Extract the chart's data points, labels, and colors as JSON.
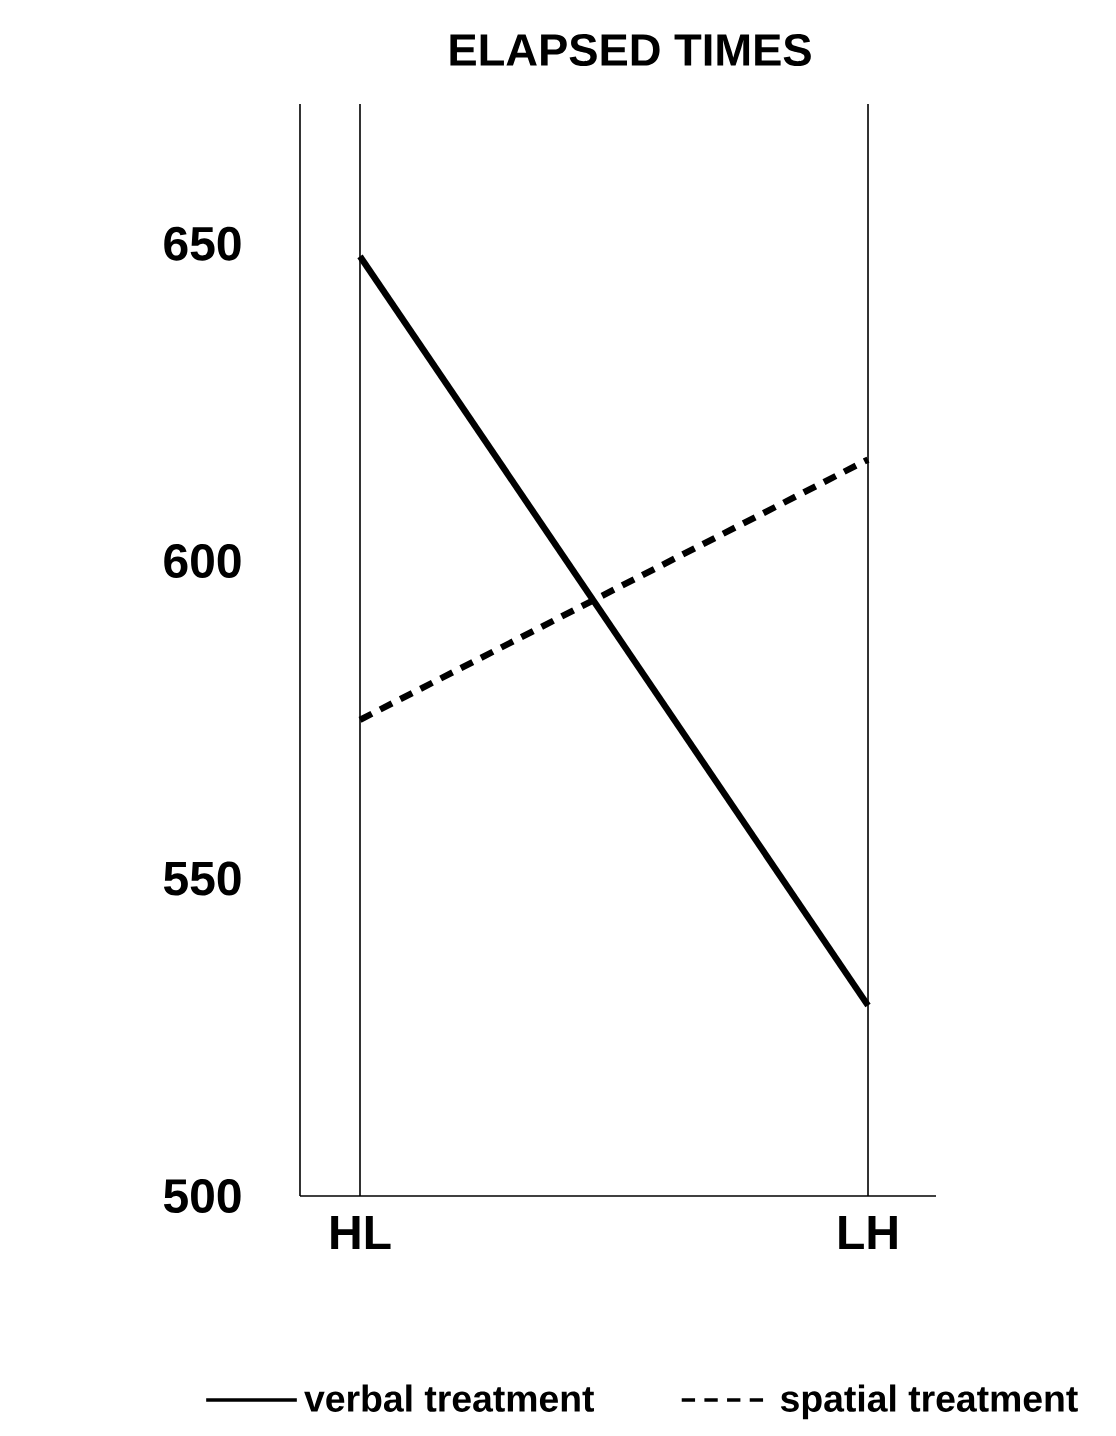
{
  "chart_data": {
    "type": "line",
    "title": "ELAPSED TIMES",
    "categories": [
      "HL",
      "LH"
    ],
    "series": [
      {
        "name": "verbal treatment",
        "color": "#000000",
        "line_style": "solid",
        "values": [
          648,
          530
        ]
      },
      {
        "name": "spatial treatment",
        "color": "#000000",
        "line_style": "dashed",
        "values": [
          575,
          616
        ]
      }
    ],
    "ylim": [
      500,
      672
    ],
    "yticks": [
      500,
      550,
      600,
      650
    ],
    "grid": "x",
    "legend": "bottom",
    "marker": "none"
  }
}
